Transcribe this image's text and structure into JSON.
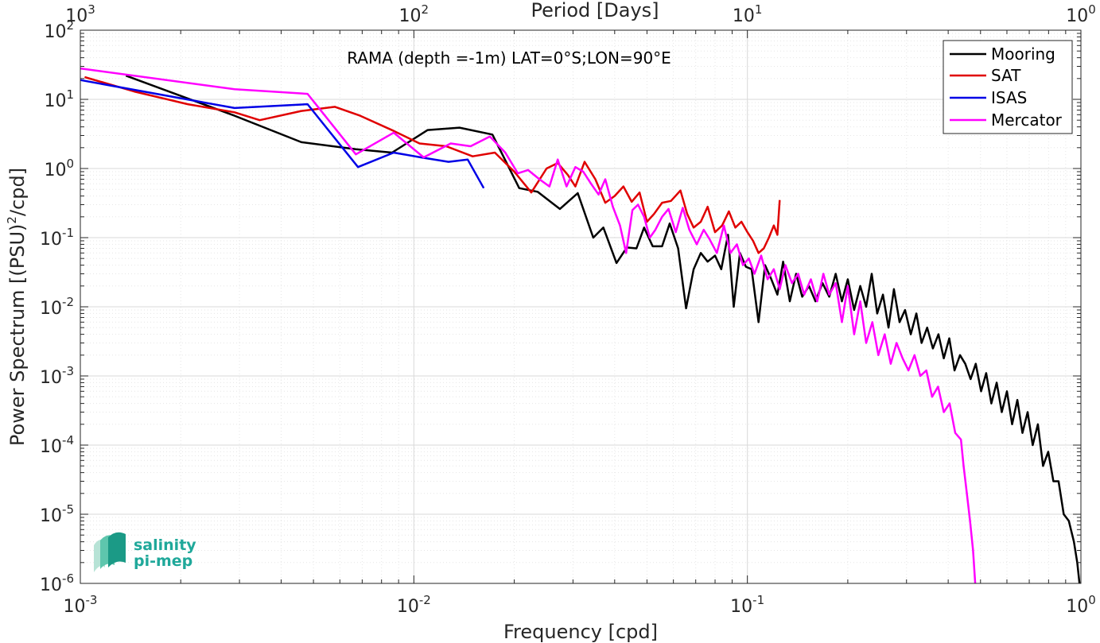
{
  "chart_data": {
    "type": "line",
    "title": "RAMA (depth =-1m) LAT=0°S;LON=90°E",
    "xlabel": "Frequency [cpd]",
    "ylabel_main": "Power Spectrum [(PSU)",
    "ylabel_sup": "2",
    "ylabel_tail": "/cpd]",
    "top_xlabel": "Period [Days]",
    "x_scale": "log",
    "y_scale": "log",
    "xlim": [
      0.001,
      1
    ],
    "ylim": [
      1e-06,
      100
    ],
    "grid": true,
    "legend_position": "top-right",
    "x_ticks": [
      {
        "value": 0.001,
        "base": "10",
        "exp": "-3"
      },
      {
        "value": 0.01,
        "base": "10",
        "exp": "-2"
      },
      {
        "value": 0.1,
        "base": "10",
        "exp": "-1"
      },
      {
        "value": 1,
        "base": "10",
        "exp": "0"
      }
    ],
    "top_ticks": [
      {
        "value": 0.001,
        "base": "10",
        "exp": "3"
      },
      {
        "value": 0.01,
        "base": "10",
        "exp": "2"
      },
      {
        "value": 0.1,
        "base": "10",
        "exp": "1"
      },
      {
        "value": 1,
        "base": "10",
        "exp": "0"
      }
    ],
    "y_ticks": [
      {
        "value": 100,
        "base": "10",
        "exp": "2"
      },
      {
        "value": 10,
        "base": "10",
        "exp": "1"
      },
      {
        "value": 1,
        "base": "10",
        "exp": "0"
      },
      {
        "value": 0.1,
        "base": "10",
        "exp": "-1"
      },
      {
        "value": 0.01,
        "base": "10",
        "exp": "-2"
      },
      {
        "value": 0.001,
        "base": "10",
        "exp": "-3"
      },
      {
        "value": 0.0001,
        "base": "10",
        "exp": "-4"
      },
      {
        "value": 1e-05,
        "base": "10",
        "exp": "-5"
      },
      {
        "value": 1e-06,
        "base": "10",
        "exp": "-6"
      }
    ],
    "series": [
      {
        "name": "Mooring",
        "color": "#000000",
        "points": [
          [
            0.00137,
            22
          ],
          [
            0.0029,
            5.8
          ],
          [
            0.0046,
            2.4
          ],
          [
            0.0067,
            1.9
          ],
          [
            0.0086,
            1.7
          ],
          [
            0.011,
            3.6
          ],
          [
            0.0137,
            3.9
          ],
          [
            0.0172,
            3.1
          ],
          [
            0.0207,
            0.52
          ],
          [
            0.0235,
            0.46
          ],
          [
            0.0274,
            0.26
          ],
          [
            0.031,
            0.44
          ],
          [
            0.0345,
            0.1
          ],
          [
            0.037,
            0.14
          ],
          [
            0.0405,
            0.043
          ],
          [
            0.0435,
            0.072
          ],
          [
            0.0465,
            0.07
          ],
          [
            0.049,
            0.14
          ],
          [
            0.052,
            0.075
          ],
          [
            0.0555,
            0.075
          ],
          [
            0.0585,
            0.16
          ],
          [
            0.062,
            0.07
          ],
          [
            0.0655,
            0.0095
          ],
          [
            0.069,
            0.035
          ],
          [
            0.0725,
            0.06
          ],
          [
            0.076,
            0.045
          ],
          [
            0.08,
            0.055
          ],
          [
            0.0835,
            0.035
          ],
          [
            0.0875,
            0.11
          ],
          [
            0.091,
            0.01
          ],
          [
            0.095,
            0.06
          ],
          [
            0.099,
            0.038
          ],
          [
            0.103,
            0.035
          ],
          [
            0.108,
            0.006
          ],
          [
            0.113,
            0.04
          ],
          [
            0.118,
            0.025
          ],
          [
            0.123,
            0.015
          ],
          [
            0.128,
            0.045
          ],
          [
            0.134,
            0.012
          ],
          [
            0.14,
            0.03
          ],
          [
            0.146,
            0.014
          ],
          [
            0.153,
            0.02
          ],
          [
            0.16,
            0.012
          ],
          [
            0.168,
            0.022
          ],
          [
            0.176,
            0.014
          ],
          [
            0.184,
            0.03
          ],
          [
            0.192,
            0.012
          ],
          [
            0.2,
            0.025
          ],
          [
            0.209,
            0.009
          ],
          [
            0.218,
            0.02
          ],
          [
            0.227,
            0.01
          ],
          [
            0.236,
            0.03
          ],
          [
            0.245,
            0.008
          ],
          [
            0.255,
            0.015
          ],
          [
            0.265,
            0.005
          ],
          [
            0.275,
            0.018
          ],
          [
            0.286,
            0.006
          ],
          [
            0.297,
            0.009
          ],
          [
            0.309,
            0.004
          ],
          [
            0.321,
            0.008
          ],
          [
            0.333,
            0.003
          ],
          [
            0.346,
            0.005
          ],
          [
            0.36,
            0.0025
          ],
          [
            0.374,
            0.004
          ],
          [
            0.388,
            0.0018
          ],
          [
            0.403,
            0.0035
          ],
          [
            0.418,
            0.0012
          ],
          [
            0.434,
            0.002
          ],
          [
            0.45,
            0.0015
          ],
          [
            0.467,
            0.0009
          ],
          [
            0.484,
            0.0015
          ],
          [
            0.502,
            0.0006
          ],
          [
            0.52,
            0.0011
          ],
          [
            0.539,
            0.0004
          ],
          [
            0.559,
            0.0008
          ],
          [
            0.579,
            0.0003
          ],
          [
            0.6,
            0.0006
          ],
          [
            0.622,
            0.0002
          ],
          [
            0.645,
            0.00045
          ],
          [
            0.668,
            0.00015
          ],
          [
            0.692,
            0.0003
          ],
          [
            0.717,
            0.0001
          ],
          [
            0.743,
            0.0002
          ],
          [
            0.77,
            5e-05
          ],
          [
            0.798,
            8e-05
          ],
          [
            0.827,
            3e-05
          ],
          [
            0.857,
            3e-05
          ],
          [
            0.888,
            1e-05
          ],
          [
            0.92,
            8e-06
          ],
          [
            0.953,
            4e-06
          ],
          [
            0.975,
            2e-06
          ],
          [
            0.99,
            1e-06
          ]
        ]
      },
      {
        "name": "SAT",
        "color": "#e00000",
        "points": [
          [
            0.00103,
            21
          ],
          [
            0.00145,
            13
          ],
          [
            0.0021,
            8.5
          ],
          [
            0.0029,
            6.5
          ],
          [
            0.00345,
            5
          ],
          [
            0.0046,
            6.8
          ],
          [
            0.0058,
            7.8
          ],
          [
            0.0069,
            5.8
          ],
          [
            0.0087,
            3.5
          ],
          [
            0.0104,
            2.3
          ],
          [
            0.0125,
            2.1
          ],
          [
            0.015,
            1.5
          ],
          [
            0.0175,
            1.7
          ],
          [
            0.02,
            0.9
          ],
          [
            0.0225,
            0.45
          ],
          [
            0.025,
            1.0
          ],
          [
            0.027,
            1.2
          ],
          [
            0.029,
            0.8
          ],
          [
            0.0305,
            0.55
          ],
          [
            0.0325,
            1.25
          ],
          [
            0.035,
            0.7
          ],
          [
            0.0375,
            0.32
          ],
          [
            0.04,
            0.4
          ],
          [
            0.0425,
            0.55
          ],
          [
            0.045,
            0.33
          ],
          [
            0.0475,
            0.45
          ],
          [
            0.05,
            0.17
          ],
          [
            0.0525,
            0.22
          ],
          [
            0.0555,
            0.32
          ],
          [
            0.059,
            0.34
          ],
          [
            0.063,
            0.48
          ],
          [
            0.066,
            0.22
          ],
          [
            0.069,
            0.14
          ],
          [
            0.0725,
            0.17
          ],
          [
            0.076,
            0.28
          ],
          [
            0.08,
            0.12
          ],
          [
            0.084,
            0.15
          ],
          [
            0.088,
            0.24
          ],
          [
            0.092,
            0.14
          ],
          [
            0.096,
            0.17
          ],
          [
            0.1,
            0.12
          ],
          [
            0.104,
            0.09
          ],
          [
            0.108,
            0.06
          ],
          [
            0.112,
            0.07
          ],
          [
            0.116,
            0.1
          ],
          [
            0.12,
            0.15
          ],
          [
            0.123,
            0.11
          ],
          [
            0.125,
            0.35
          ]
        ]
      },
      {
        "name": "ISAS",
        "color": "#0000e6",
        "points": [
          [
            0.001,
            19
          ],
          [
            0.0029,
            7.5
          ],
          [
            0.0048,
            8.5
          ],
          [
            0.0068,
            1.05
          ],
          [
            0.0087,
            1.7
          ],
          [
            0.0105,
            1.45
          ],
          [
            0.0127,
            1.25
          ],
          [
            0.0145,
            1.35
          ],
          [
            0.0162,
            0.52
          ]
        ]
      },
      {
        "name": "Mercator",
        "color": "#ff00ff",
        "points": [
          [
            0.001,
            28
          ],
          [
            0.0029,
            14
          ],
          [
            0.0048,
            12
          ],
          [
            0.0067,
            1.6
          ],
          [
            0.0087,
            3.3
          ],
          [
            0.0107,
            1.45
          ],
          [
            0.0129,
            2.3
          ],
          [
            0.0148,
            2.1
          ],
          [
            0.0169,
            2.9
          ],
          [
            0.0188,
            1.7
          ],
          [
            0.0205,
            0.85
          ],
          [
            0.022,
            0.95
          ],
          [
            0.0238,
            0.7
          ],
          [
            0.0255,
            0.55
          ],
          [
            0.027,
            1.35
          ],
          [
            0.0287,
            0.55
          ],
          [
            0.0305,
            1.05
          ],
          [
            0.0322,
            0.9
          ],
          [
            0.034,
            0.6
          ],
          [
            0.0358,
            0.42
          ],
          [
            0.0375,
            0.7
          ],
          [
            0.0395,
            0.28
          ],
          [
            0.0415,
            0.15
          ],
          [
            0.0433,
            0.06
          ],
          [
            0.0452,
            0.25
          ],
          [
            0.047,
            0.3
          ],
          [
            0.049,
            0.2
          ],
          [
            0.051,
            0.1
          ],
          [
            0.053,
            0.13
          ],
          [
            0.0555,
            0.2
          ],
          [
            0.058,
            0.26
          ],
          [
            0.061,
            0.12
          ],
          [
            0.064,
            0.27
          ],
          [
            0.067,
            0.13
          ],
          [
            0.0705,
            0.08
          ],
          [
            0.074,
            0.13
          ],
          [
            0.077,
            0.095
          ],
          [
            0.081,
            0.06
          ],
          [
            0.085,
            0.15
          ],
          [
            0.089,
            0.06
          ],
          [
            0.093,
            0.08
          ],
          [
            0.097,
            0.04
          ],
          [
            0.101,
            0.05
          ],
          [
            0.105,
            0.03
          ],
          [
            0.11,
            0.055
          ],
          [
            0.115,
            0.025
          ],
          [
            0.12,
            0.035
          ],
          [
            0.125,
            0.018
          ],
          [
            0.13,
            0.04
          ],
          [
            0.136,
            0.022
          ],
          [
            0.142,
            0.03
          ],
          [
            0.148,
            0.015
          ],
          [
            0.155,
            0.025
          ],
          [
            0.162,
            0.012
          ],
          [
            0.169,
            0.03
          ],
          [
            0.176,
            0.015
          ],
          [
            0.184,
            0.022
          ],
          [
            0.192,
            0.006
          ],
          [
            0.2,
            0.02
          ],
          [
            0.209,
            0.004
          ],
          [
            0.218,
            0.012
          ],
          [
            0.227,
            0.003
          ],
          [
            0.237,
            0.006
          ],
          [
            0.247,
            0.002
          ],
          [
            0.258,
            0.004
          ],
          [
            0.269,
            0.0015
          ],
          [
            0.28,
            0.003
          ],
          [
            0.292,
            0.0018
          ],
          [
            0.304,
            0.0012
          ],
          [
            0.317,
            0.002
          ],
          [
            0.33,
            0.001
          ],
          [
            0.344,
            0.0012
          ],
          [
            0.358,
            0.0005
          ],
          [
            0.373,
            0.0007
          ],
          [
            0.388,
            0.0003
          ],
          [
            0.404,
            0.0004
          ],
          [
            0.42,
            0.00015
          ],
          [
            0.437,
            0.00012
          ],
          [
            0.445,
            5e-05
          ],
          [
            0.455,
            2e-05
          ],
          [
            0.465,
            8e-06
          ],
          [
            0.475,
            3e-06
          ],
          [
            0.482,
            1e-06
          ]
        ]
      }
    ]
  },
  "logo": {
    "line1": "salinity",
    "line2": "pi-mep"
  }
}
